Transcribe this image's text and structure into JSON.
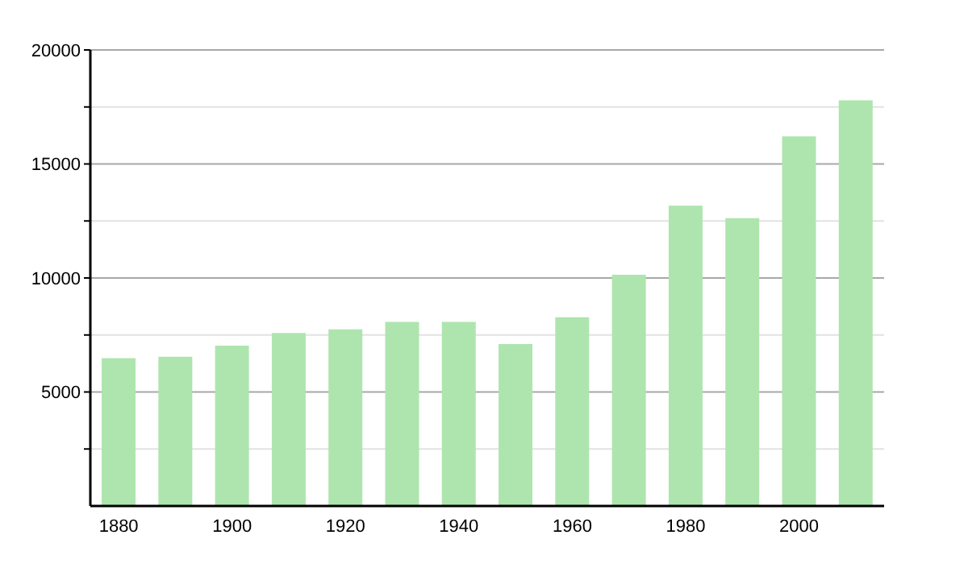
{
  "chart_data": {
    "type": "bar",
    "categories": [
      "1880",
      null,
      "1900",
      null,
      "1920",
      null,
      "1940",
      null,
      "1960",
      null,
      "1980",
      null,
      "2000",
      null
    ],
    "values": [
      6480,
      6550,
      7030,
      7590,
      7750,
      8070,
      8070,
      7100,
      8280,
      10140,
      13170,
      12620,
      16210,
      17790
    ],
    "color": "#aee5ae",
    "ylim": [
      0,
      20000
    ],
    "yticks": [
      {
        "value": 2500,
        "label": null
      },
      5000,
      {
        "value": 7500,
        "label": null
      },
      10000,
      {
        "value": 12500,
        "label": null
      },
      15000,
      {
        "value": 17500,
        "label": null
      },
      20000
    ],
    "grid": "y"
  }
}
